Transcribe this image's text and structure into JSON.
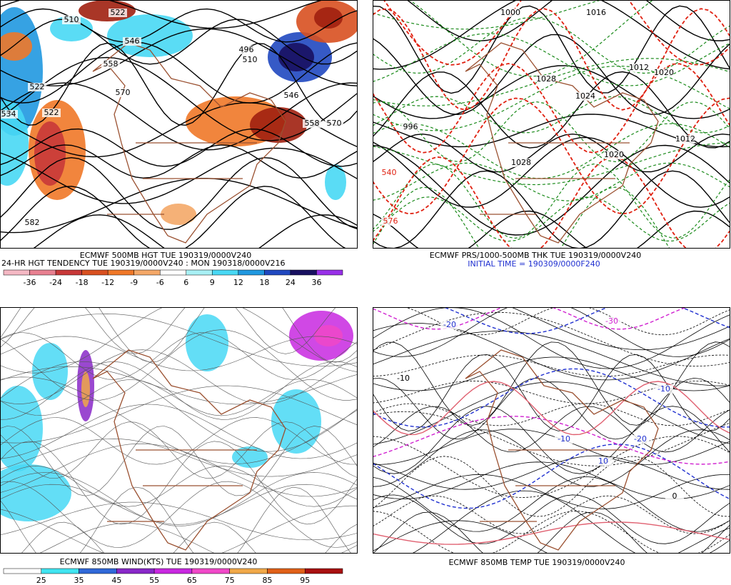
{
  "panels": [
    {
      "title": "ECMWF 500MB HGT TUE 190319/0000V240",
      "subtitle": "24-HR HGT TENDENCY TUE 190319/0000V240 : MON 190318/0000V216",
      "contour_labels": [
        "510",
        "522",
        "546",
        "558",
        "570",
        "522",
        "522",
        "534",
        "496",
        "510",
        "546",
        "558",
        "570",
        "582"
      ],
      "colorbar": {
        "labels": [
          "-36",
          "-24",
          "-18",
          "-12",
          "-9",
          "-6",
          "6",
          "9",
          "12",
          "18",
          "24",
          "36"
        ],
        "colors": [
          "#f4b8c4",
          "#e88090",
          "#c83838",
          "#d85020",
          "#f07828",
          "#f4a868",
          "#ffffff",
          "#a8f0f4",
          "#48d8f4",
          "#2098e0",
          "#2048c0",
          "#181060",
          "#9830e8"
        ]
      }
    },
    {
      "title": "ECMWF PRS/1000-500MB THK TUE 190319/0000V240",
      "subtitle": "INITIAL TIME = 190309/0000F240",
      "contour_labels": [
        "1000",
        "1016",
        "1028",
        "1024",
        "1012",
        "1020",
        "1012",
        "1020",
        "996",
        "1028",
        "540",
        "576"
      ]
    },
    {
      "title": "ECMWF 850MB WIND(KTS) TUE 190319/0000V240",
      "colorbar": {
        "labels": [
          "25",
          "35",
          "45",
          "55",
          "65",
          "75",
          "85",
          "95"
        ],
        "colors": [
          "#ffffff",
          "#40e4f0",
          "#3068d8",
          "#8828c8",
          "#c828e0",
          "#f048c8",
          "#f0a848",
          "#e06018",
          "#a81010"
        ]
      }
    },
    {
      "title": "ECMWF 850MB TEMP TUE 190319/0000V240",
      "contour_labels": [
        "-10",
        "-20",
        "-30",
        "-10",
        "-20",
        "10",
        "-10",
        "0"
      ]
    }
  ]
}
